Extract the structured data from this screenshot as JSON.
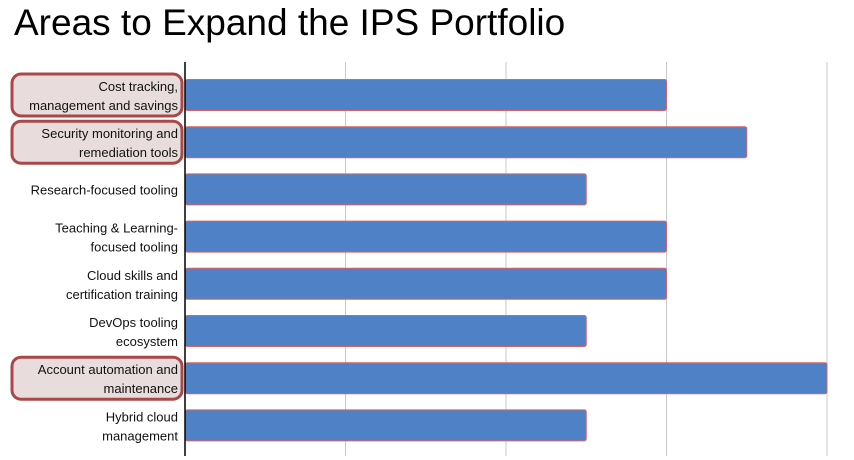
{
  "title": "Areas to Expand the IPS Portfolio",
  "colors": {
    "bar_fill": "#4f81c7",
    "bar_stroke": "#d96464",
    "highlight_fill": "#e8dcdc",
    "highlight_stroke": "#a94848",
    "grid": "#c8c8c8",
    "axis": "#000000"
  },
  "chart_data": {
    "type": "bar",
    "orientation": "horizontal",
    "title": "Areas to Expand the IPS Portfolio",
    "categories": [
      [
        "Cost tracking,",
        "management and savings"
      ],
      [
        "Security monitoring and",
        "remediation tools"
      ],
      [
        "Research-focused tooling"
      ],
      [
        "Teaching & Learning-",
        "focused tooling"
      ],
      [
        "Cloud skills and",
        "certification training"
      ],
      [
        "DevOps tooling",
        "ecosystem"
      ],
      [
        "Account automation and",
        "maintenance"
      ],
      [
        "Hybrid cloud",
        "management"
      ]
    ],
    "values": [
      3,
      3.5,
      2.5,
      3,
      3,
      2.5,
      4,
      2.5
    ],
    "highlighted": [
      true,
      true,
      false,
      false,
      false,
      false,
      true,
      false
    ],
    "xlim": [
      0,
      4
    ],
    "grid": true,
    "tick_labels_shown": false
  }
}
